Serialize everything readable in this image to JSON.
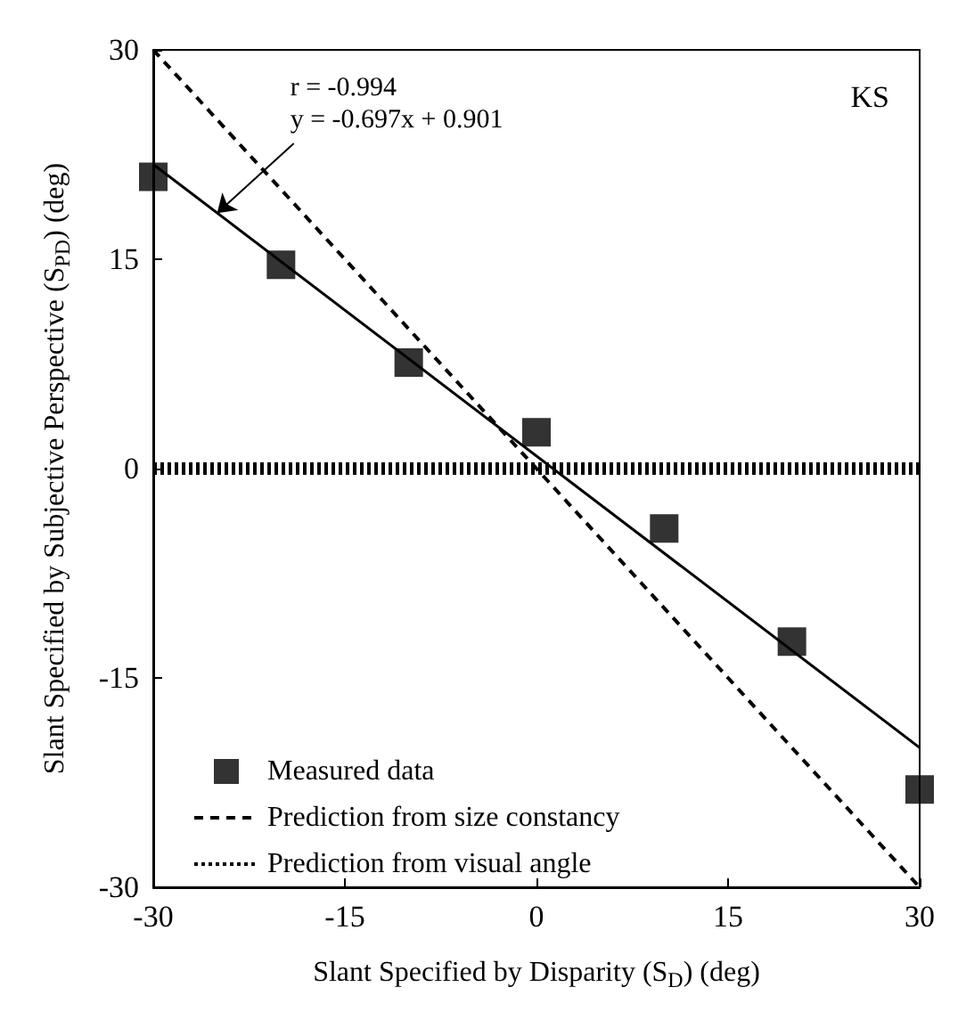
{
  "chart_data": {
    "type": "scatter",
    "xlabel": "Slant Specified by Disparity (S$_{D}$) (deg)",
    "ylabel": "Slant Specified by Subjective Perspective (S$_{PD}$) (deg)",
    "annotations": [
      "KS",
      {
        "text": "r = -0.994\ny = -0.697x + 0.901",
        "x": -25,
        "y": 18.3
      }
    ],
    "xlim": [
      -30,
      30
    ],
    "xticks": [
      -30,
      -15,
      0,
      15,
      30
    ],
    "ylim": [
      -30,
      30
    ],
    "yticks": [
      -30,
      -15,
      0,
      15,
      30
    ],
    "grid": false,
    "legend": "bottom left",
    "series": [
      {
        "name": "Measured data",
        "marker": "square",
        "color": "#000000",
        "x": [
          -30,
          -20,
          -10,
          0,
          10,
          20,
          30
        ],
        "values": [
          20.9,
          14.6,
          7.6,
          2.6,
          -4.3,
          -12.4,
          -23.0
        ]
      },
      {
        "type": "line",
        "color": "#000000",
        "line_style": "solid",
        "x": [
          -30,
          30
        ],
        "values": [
          21.8,
          -20.0
        ]
      },
      {
        "name": "Prediction from size constancy",
        "type": "line",
        "color": "#000000",
        "line_style": "dashed",
        "x": [
          -30,
          30
        ],
        "values": [
          30,
          -30
        ]
      },
      {
        "name": "Prediction from visual angle",
        "type": "line",
        "color": "#000000",
        "line_style": "dotted",
        "x": [
          -30,
          30
        ],
        "values": [
          0,
          0
        ]
      }
    ]
  }
}
